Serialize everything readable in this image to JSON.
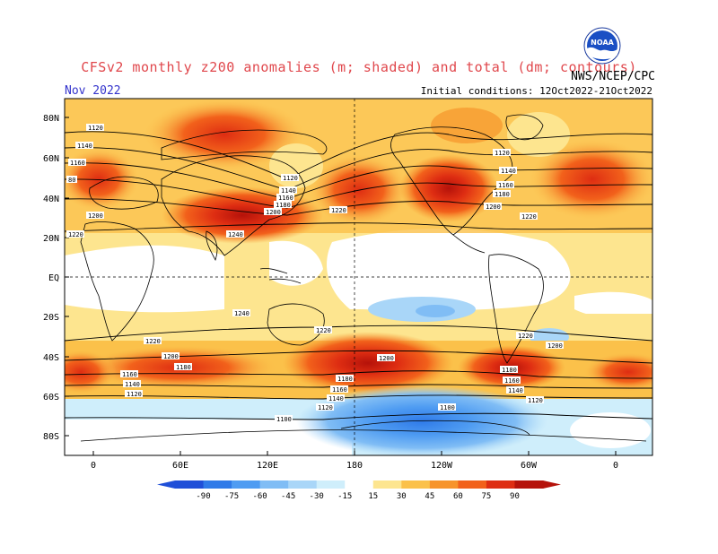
{
  "header": {
    "title": "CFSv2 monthly z200 anomalies (m; shaded) and total (dm; contours)",
    "agency": "NWS/NCEP/CPC",
    "month": "Nov 2022",
    "initial_conditions": "Initial conditions: 12Oct2022-21Oct2022",
    "logo_text": "NOAA",
    "logo_icon": "noaa-logo-icon"
  },
  "axes": {
    "lat_labels": [
      "80N",
      "60N",
      "40N",
      "20N",
      "EQ",
      "20S",
      "40S",
      "60S",
      "80S"
    ],
    "lon_labels": [
      "0",
      "60E",
      "120E",
      "180",
      "120W",
      "60W",
      "0"
    ]
  },
  "contour_labels": {
    "north": [
      "1120",
      "1140",
      "1160",
      "1180",
      "1200",
      "1220",
      "1240",
      "1120",
      "1140",
      "1160",
      "1180",
      "1200",
      "1220",
      "1160",
      "1140",
      "1120",
      "1180",
      "1200",
      "1220",
      "1120",
      "1140",
      "1160",
      "1180",
      "1200",
      "1220",
      "1220",
      "1200",
      "1220",
      "80"
    ],
    "south": [
      "1240",
      "1220",
      "1220",
      "1220",
      "1200",
      "1200",
      "1180",
      "1160",
      "1140",
      "1120",
      "1180",
      "1160",
      "1140",
      "1120",
      "1100",
      "1100",
      "1200",
      "1180",
      "1160",
      "1140",
      "1120"
    ]
  },
  "legend": {
    "ticks": [
      "-90",
      "-75",
      "-60",
      "-45",
      "-30",
      "-15",
      "15",
      "30",
      "45",
      "60",
      "75",
      "90"
    ],
    "colors": [
      "#1f4fd8",
      "#2f7ae8",
      "#4f9cf2",
      "#80bdf5",
      "#a9d6f8",
      "#cfeefb",
      "#ffffff",
      "#fde58f",
      "#fbc14a",
      "#f7942b",
      "#f2611b",
      "#de2d12",
      "#b5120a"
    ]
  },
  "colors": {
    "land_outline": "#000000",
    "grid": "#000000",
    "title_red": "#e0474c",
    "month_blue": "#3333cc"
  }
}
